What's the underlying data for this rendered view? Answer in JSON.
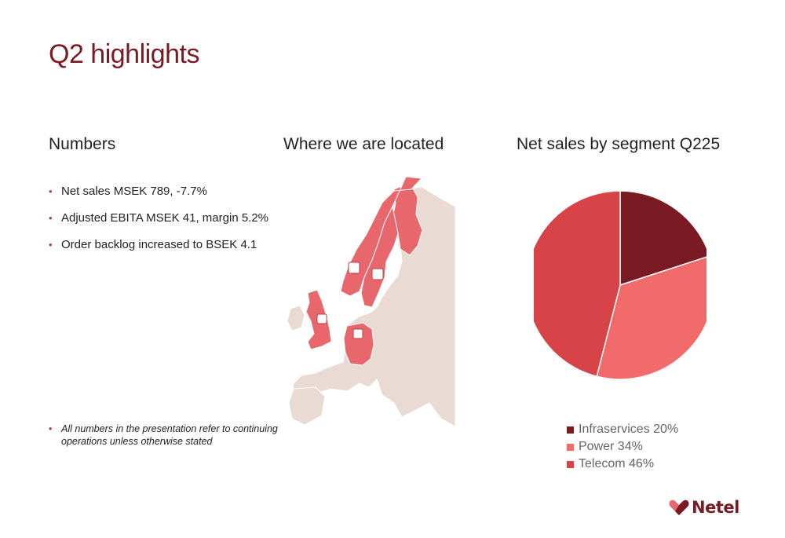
{
  "slide": {
    "title": "Q2 highlights"
  },
  "numbers": {
    "heading": "Numbers",
    "bullets": [
      "Net sales MSEK 789, -7.7%",
      "Adjusted EBITA MSEK 41, margin 5.2%",
      "Order backlog increased to BSEK 4.1"
    ],
    "footnote": "All numbers in the presentation refer to continuing operations unless otherwise stated"
  },
  "map": {
    "heading": "Where we are located",
    "highlighted_regions": [
      "Norway",
      "Sweden",
      "Finland",
      "United Kingdom",
      "Germany"
    ],
    "colors": {
      "highlight": "#e8676d",
      "base": "#e9dad3",
      "border": "#ffffff"
    }
  },
  "chart_heading": "Net sales by segment Q225",
  "chart_data": {
    "type": "pie",
    "title": "Net sales by segment Q225",
    "slices": [
      {
        "label": "Infraservices 20%",
        "value": 20,
        "color": "#7a1b24"
      },
      {
        "label": "Power 34%",
        "value": 34,
        "color": "#f26b6b"
      },
      {
        "label": "Telecom 46%",
        "value": 46,
        "color": "#d84348"
      }
    ],
    "legend_position": "bottom"
  },
  "logo": {
    "text": "Netel",
    "color": "#7a1b24",
    "accent": "#e8676d"
  }
}
